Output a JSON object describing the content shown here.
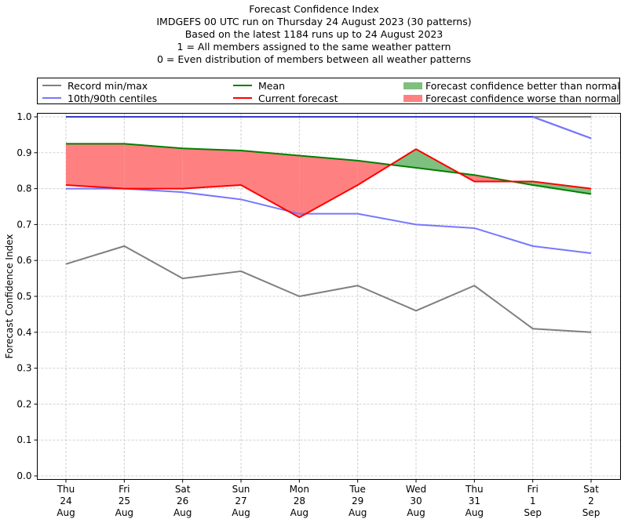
{
  "chart_data": {
    "type": "line",
    "title_lines": [
      "Forecast Confidence Index",
      "IMDGEFS 00 UTC run on Thursday 24 August 2023 (30 patterns)",
      "Based on the latest 1184 runs up to 24 August 2023",
      "1 = All members assigned to the same weather pattern",
      "0 = Even distribution of members between all weather patterns"
    ],
    "ylabel": "Forecast Confidence Index",
    "xlabel": "",
    "ylim": [
      0.0,
      1.0
    ],
    "yticks": [
      "0.0",
      "0.1",
      "0.2",
      "0.3",
      "0.4",
      "0.5",
      "0.6",
      "0.7",
      "0.8",
      "0.9",
      "1.0"
    ],
    "grid": true,
    "legend_position": "top",
    "categories": [
      {
        "day": "Thu",
        "date": "24",
        "month": "Aug"
      },
      {
        "day": "Fri",
        "date": "25",
        "month": "Aug"
      },
      {
        "day": "Sat",
        "date": "26",
        "month": "Aug"
      },
      {
        "day": "Sun",
        "date": "27",
        "month": "Aug"
      },
      {
        "day": "Mon",
        "date": "28",
        "month": "Aug"
      },
      {
        "day": "Tue",
        "date": "29",
        "month": "Aug"
      },
      {
        "day": "Wed",
        "date": "30",
        "month": "Aug"
      },
      {
        "day": "Thu",
        "date": "31",
        "month": "Aug"
      },
      {
        "day": "Fri",
        "date": "1",
        "month": "Sep"
      },
      {
        "day": "Sat",
        "date": "2",
        "month": "Sep"
      }
    ],
    "series": [
      {
        "name": "Record max",
        "legend": "Record min/max",
        "color": "#7f7f7f",
        "values": [
          1.0,
          1.0,
          1.0,
          1.0,
          1.0,
          1.0,
          1.0,
          1.0,
          1.0,
          1.0
        ]
      },
      {
        "name": "Record min",
        "legend": "Record min/max",
        "color": "#7f7f7f",
        "values": [
          0.59,
          0.64,
          0.55,
          0.57,
          0.5,
          0.53,
          0.46,
          0.53,
          0.41,
          0.4
        ]
      },
      {
        "name": "90th centile",
        "legend": "10th/90th centiles",
        "color": "#7777ff",
        "values": [
          1.0,
          1.0,
          1.0,
          1.0,
          1.0,
          1.0,
          1.0,
          1.0,
          1.0,
          0.94
        ]
      },
      {
        "name": "10th centile",
        "legend": "10th/90th centiles",
        "color": "#7777ff",
        "values": [
          0.8,
          0.8,
          0.79,
          0.77,
          0.73,
          0.73,
          0.7,
          0.69,
          0.64,
          0.62
        ]
      },
      {
        "name": "Mean",
        "legend": "Mean",
        "color": "#008000",
        "values": [
          0.925,
          0.925,
          0.912,
          0.906,
          0.892,
          0.878,
          0.858,
          0.838,
          0.81,
          0.785
        ]
      },
      {
        "name": "Current forecast",
        "legend": "Current forecast",
        "color": "#ff0000",
        "values": [
          0.81,
          0.8,
          0.8,
          0.81,
          0.72,
          0.81,
          0.91,
          0.82,
          0.82,
          0.8
        ]
      }
    ],
    "fills": {
      "better": {
        "label": "Forecast confidence better than normal",
        "color": "#7fbf7f"
      },
      "worse": {
        "label": "Forecast confidence worse than normal",
        "color": "#ff8080"
      }
    }
  },
  "legend": {
    "record": "Record min/max",
    "centiles": "10th/90th centiles",
    "mean": "Mean",
    "current": "Current forecast",
    "better": "Forecast confidence better than normal",
    "worse": "Forecast confidence worse than normal"
  }
}
